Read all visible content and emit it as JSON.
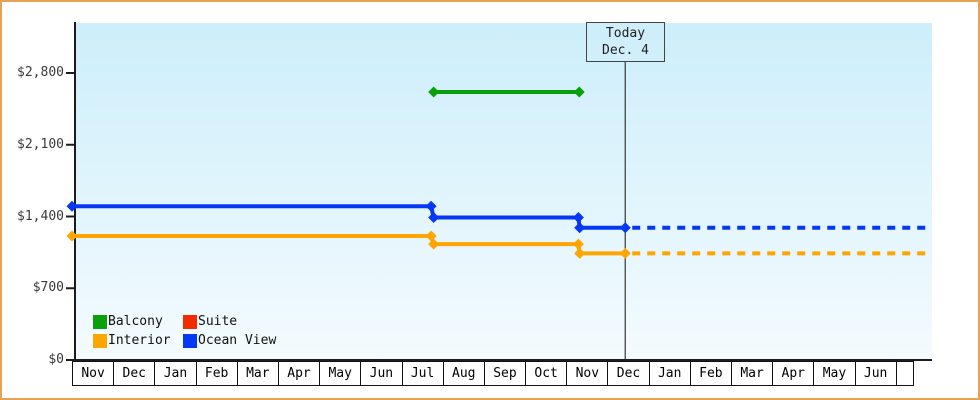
{
  "chart_data": {
    "type": "line",
    "description": "Cruise cabin price history by category with step changes and dashed projected prices after today",
    "y_axis": {
      "ticks": [
        {
          "label": "$0",
          "value": 0
        },
        {
          "label": "$700",
          "value": 700
        },
        {
          "label": "$1,400",
          "value": 1400
        },
        {
          "label": "$2,100",
          "value": 2100
        },
        {
          "label": "$2,800",
          "value": 2800
        }
      ]
    },
    "x_axis": {
      "months": [
        "Nov",
        "Dec",
        "Jan",
        "Feb",
        "Mar",
        "Apr",
        "May",
        "Jun",
        "Jul",
        "Aug",
        "Sep",
        "Oct",
        "Nov",
        "Dec",
        "Jan",
        "Feb",
        "Mar",
        "Apr",
        "May",
        "Jun"
      ],
      "trailing_empty_cell": true
    },
    "today": {
      "line1": "Today",
      "line2": "Dec. 4",
      "month_pos": 13.11
    },
    "legend": {
      "items": [
        {
          "label": "Balcony",
          "color": "#0aa00a"
        },
        {
          "label": "Suite",
          "color": "#f52b00"
        },
        {
          "label": "Interior",
          "color": "#ffa500"
        },
        {
          "label": "Ocean View",
          "color": "#0538f5"
        }
      ]
    },
    "series": [
      {
        "name": "Balcony",
        "color": "#0aa00a",
        "points": [
          [
            8.57,
            2615
          ],
          [
            12.02,
            2615
          ]
        ],
        "future": null
      },
      {
        "name": "Suite",
        "color": "#f52b00",
        "points": [],
        "future": null
      },
      {
        "name": "Interior",
        "color": "#ffa500",
        "points": [
          [
            0,
            1210
          ],
          [
            8.51,
            1210
          ],
          [
            8.57,
            1130
          ],
          [
            12.0,
            1130
          ],
          [
            12.03,
            1040
          ],
          [
            13.11,
            1040
          ]
        ],
        "future": [
          [
            13.11,
            1040
          ],
          [
            20.35,
            1040
          ]
        ]
      },
      {
        "name": "Ocean View",
        "color": "#0538f5",
        "points": [
          [
            0,
            1500
          ],
          [
            8.51,
            1500
          ],
          [
            8.57,
            1390
          ],
          [
            12.0,
            1390
          ],
          [
            12.03,
            1290
          ],
          [
            13.11,
            1290
          ]
        ],
        "future": [
          [
            13.11,
            1290
          ],
          [
            20.35,
            1290
          ]
        ]
      }
    ],
    "colors": {
      "frame_border": "#e7a254",
      "plot_bg_top": "#cdeefb",
      "plot_bg_bottom": "#f4fbfe",
      "axis": "#1c1c1c",
      "today_line": "#444444"
    }
  }
}
